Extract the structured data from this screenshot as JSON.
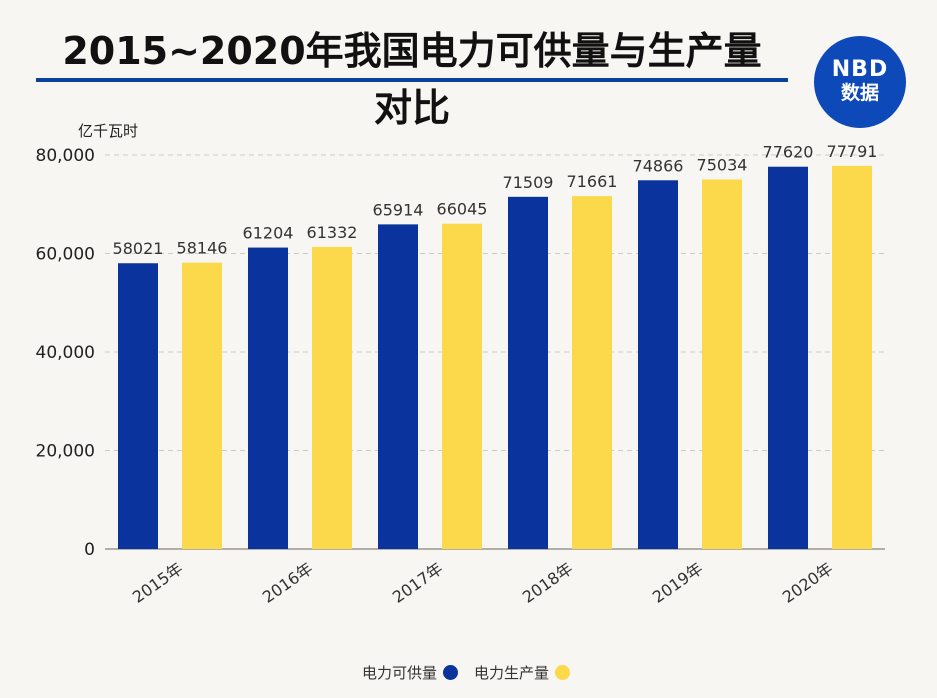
{
  "header": {
    "title_line1": "2015~2020年我国电力可供量与生产量",
    "title_line2": "对比"
  },
  "logo": {
    "line1": "NBD",
    "line2": "数据"
  },
  "colors": {
    "supply": "#0b339e",
    "production": "#fcd94a",
    "rule": "#0b3fa0",
    "logo_bg": "#0d49b8"
  },
  "chart_data": {
    "type": "bar",
    "ylabel": "亿千瓦时",
    "ylim": [
      0,
      80000
    ],
    "yticks": [
      0,
      20000,
      40000,
      60000,
      80000
    ],
    "ytick_labels": [
      "0",
      "20,000",
      "40,000",
      "60,000",
      "80,000"
    ],
    "grid": true,
    "legend_position": "bottom-center",
    "categories": [
      "2015年",
      "2016年",
      "2017年",
      "2018年",
      "2019年",
      "2020年"
    ],
    "series": [
      {
        "name": "电力可供量",
        "color": "#0b339e",
        "values": [
          58021,
          61204,
          65914,
          71509,
          74866,
          77620
        ]
      },
      {
        "name": "电力生产量",
        "color": "#fcd94a",
        "values": [
          58146,
          61332,
          66045,
          71661,
          75034,
          77791
        ]
      }
    ]
  }
}
